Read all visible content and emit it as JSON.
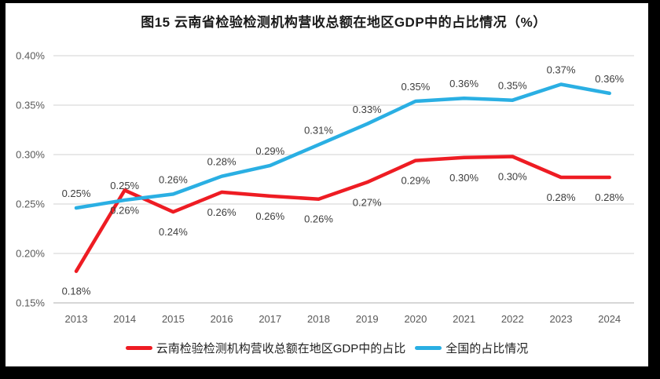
{
  "title": "图15 云南省检验检测机构营收总额在地区GDP中的占比情况（%）",
  "colors": {
    "background": "#ffffff",
    "frame": "#000000",
    "gridline": "#d9d9d9",
    "axis_line": "#bfbfbf",
    "tick_text": "#595959",
    "data_label_text": "#3d3d3d",
    "title_text": "#1a1a1a"
  },
  "chart_data": {
    "type": "line",
    "title": "图15 云南省检验检测机构营收总额在地区GDP中的占比情况（%）",
    "x": [
      "2013",
      "2014",
      "2015",
      "2016",
      "2017",
      "2018",
      "2019",
      "2020",
      "2021",
      "2022",
      "2023",
      "2024"
    ],
    "ylim": [
      0.15,
      0.4
    ],
    "yticks": [
      "0.40%",
      "0.35%",
      "0.30%",
      "0.25%",
      "0.20%",
      "0.15%"
    ],
    "grid": true,
    "legend_position": "bottom",
    "series": [
      {
        "name": "云南检验检测机构营收总额在地区GDP中的占比",
        "color": "#ee1c23",
        "label_position": "below",
        "labels": [
          "0.18%",
          "0.26%",
          "0.24%",
          "0.26%",
          "0.26%",
          "0.26%",
          "0.27%",
          "0.29%",
          "0.30%",
          "0.30%",
          "0.28%",
          "0.28%"
        ],
        "values": [
          0.18,
          0.26,
          0.24,
          0.26,
          0.26,
          0.26,
          0.27,
          0.29,
          0.3,
          0.3,
          0.28,
          0.28
        ],
        "plot_values": [
          0.182,
          0.264,
          0.242,
          0.262,
          0.258,
          0.255,
          0.272,
          0.294,
          0.297,
          0.298,
          0.277,
          0.277
        ]
      },
      {
        "name": "全国的占比情况",
        "color": "#2aafe3",
        "label_position": "above",
        "labels": [
          "0.25%",
          "0.25%",
          "0.26%",
          "0.28%",
          "0.29%",
          "0.31%",
          "0.33%",
          "0.35%",
          "0.36%",
          "0.35%",
          "0.37%",
          "0.36%"
        ],
        "values": [
          0.25,
          0.25,
          0.26,
          0.28,
          0.29,
          0.31,
          0.33,
          0.35,
          0.36,
          0.35,
          0.37,
          0.36
        ],
        "plot_values": [
          0.246,
          0.254,
          0.26,
          0.278,
          0.289,
          0.31,
          0.331,
          0.354,
          0.357,
          0.355,
          0.371,
          0.362
        ]
      }
    ]
  }
}
